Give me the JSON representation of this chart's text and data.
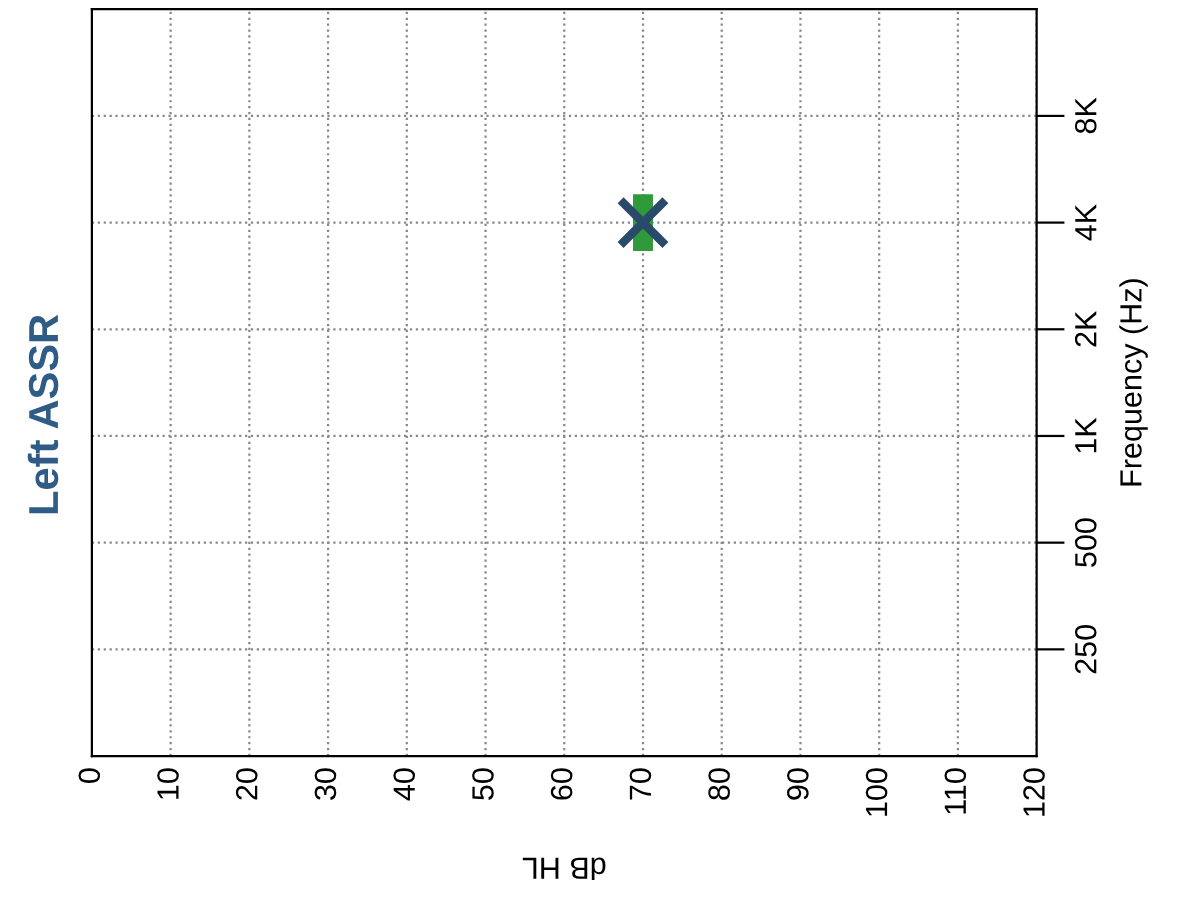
{
  "chart_data": {
    "type": "scatter",
    "title": "Left ASSR",
    "xlabel": "dB HL",
    "ylabel": "Frequency (Hz)",
    "series": [
      {
        "marker": "square",
        "color": "#2e9a3a",
        "x": [
          70
        ],
        "values": [
          4000
        ]
      },
      {
        "marker": "cross",
        "color": "#2a4a6a",
        "x": [
          70
        ],
        "values": [
          4000
        ]
      }
    ],
    "xlim": [
      0,
      120
    ],
    "xticks": [
      0,
      10,
      20,
      30,
      40,
      50,
      60,
      70,
      80,
      90,
      100,
      110,
      120
    ],
    "log": "y",
    "ylim": [
      125,
      16000
    ],
    "yticks": [
      250,
      500,
      {
        "value": 1000,
        "label": "1K"
      },
      {
        "value": 2000,
        "label": "2K"
      },
      {
        "value": 4000,
        "label": "4K"
      },
      {
        "value": 8000,
        "label": "8K"
      }
    ],
    "grid": true,
    "line_style": "dotted"
  }
}
